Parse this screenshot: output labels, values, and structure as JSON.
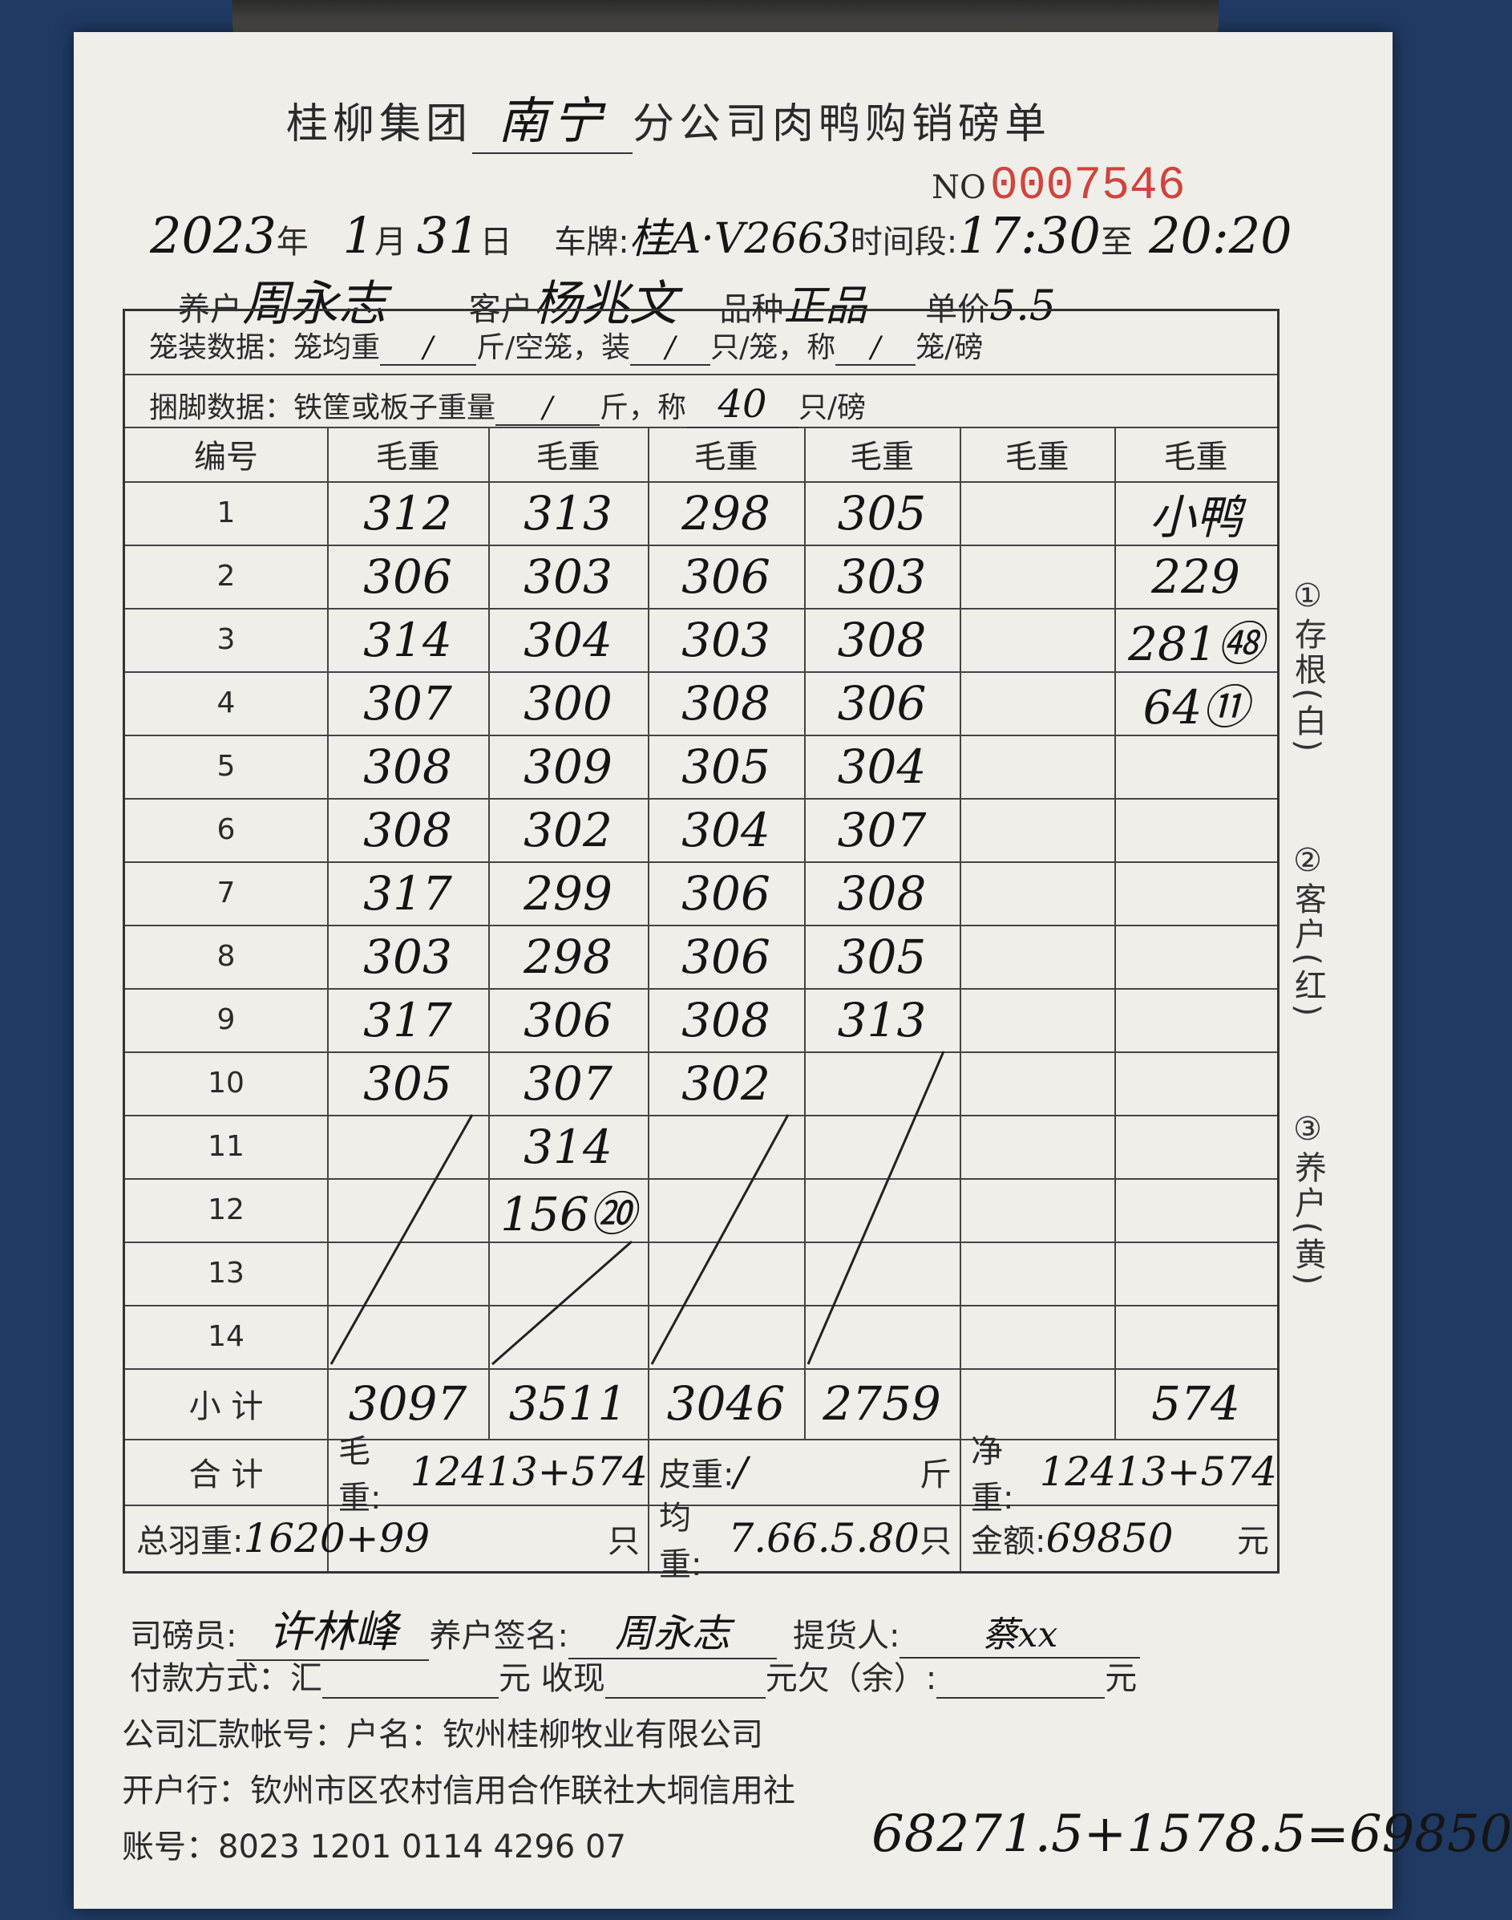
{
  "form": {
    "title_prefix": "桂柳集团",
    "branch": "南宁",
    "title_suffix": "分公司肉鸭购销磅单",
    "no_label": "NO",
    "no_value": "0007546",
    "year": "2023",
    "year_label": "年",
    "month": "1",
    "month_label": "月",
    "day": "31",
    "day_label": "日",
    "plate_label": "车牌:",
    "plate": "桂A·V2663",
    "time_label": "时间段:",
    "time_from": "17:30",
    "time_to_label": "至",
    "time_to": "20:20",
    "farmer_label": "养户",
    "farmer": "周永志",
    "customer_label": "客户",
    "customer": "杨兆文",
    "variety_label": "品种",
    "variety": "正品",
    "price_label": "单价",
    "price": "5.5"
  },
  "cage": {
    "label": "笼装数据：笼均重",
    "v1": "/",
    "u1": "斤/空笼，装",
    "v2": "/",
    "u2": "只/笼，称",
    "v3": "/",
    "u3": "笼/磅"
  },
  "tie": {
    "label": "捆脚数据：铁筐或板子重量",
    "v1": "/",
    "u1": "斤，称",
    "v2": "40",
    "u2": "只/磅"
  },
  "table": {
    "id_header": "编号",
    "col_headers": [
      "毛重",
      "毛重",
      "毛重",
      "毛重",
      "毛重",
      "毛重"
    ],
    "rows": [
      {
        "id": "1",
        "cells": [
          "312",
          "313",
          "298",
          "305",
          "",
          "小鸭"
        ]
      },
      {
        "id": "2",
        "cells": [
          "306",
          "303",
          "306",
          "303",
          "",
          "229"
        ]
      },
      {
        "id": "3",
        "cells": [
          "314",
          "304",
          "303",
          "308",
          "",
          "281㊽"
        ]
      },
      {
        "id": "4",
        "cells": [
          "307",
          "300",
          "308",
          "306",
          "",
          "64⑪"
        ]
      },
      {
        "id": "5",
        "cells": [
          "308",
          "309",
          "305",
          "304",
          "",
          ""
        ]
      },
      {
        "id": "6",
        "cells": [
          "308",
          "302",
          "304",
          "307",
          "",
          ""
        ]
      },
      {
        "id": "7",
        "cells": [
          "317",
          "299",
          "306",
          "308",
          "",
          ""
        ]
      },
      {
        "id": "8",
        "cells": [
          "303",
          "298",
          "306",
          "305",
          "",
          ""
        ]
      },
      {
        "id": "9",
        "cells": [
          "317",
          "306",
          "308",
          "313",
          "",
          ""
        ]
      },
      {
        "id": "10",
        "cells": [
          "305",
          "307",
          "302",
          "",
          "",
          ""
        ]
      },
      {
        "id": "11",
        "cells": [
          "",
          "314",
          "",
          "",
          "",
          ""
        ]
      },
      {
        "id": "12",
        "cells": [
          "",
          "156⑳",
          "",
          "",
          "",
          ""
        ]
      },
      {
        "id": "13",
        "cells": [
          "",
          "",
          "",
          "",
          "",
          ""
        ]
      },
      {
        "id": "14",
        "cells": [
          "",
          "",
          "",
          "",
          "",
          ""
        ]
      }
    ],
    "subtotal_label": "小 计",
    "subtotals": [
      "3097",
      "3511",
      "3046",
      "2759",
      "",
      "574"
    ],
    "total_label": "合 计",
    "gross_label": "毛重:",
    "gross": "12413+574",
    "tare_label": "皮重:",
    "tare": "/",
    "tare_unit": "斤",
    "net_label": "净重:",
    "net": "12413+574",
    "feather_label": "总羽重:",
    "feather": "1620+99",
    "feather_unit": "只",
    "avg_label": "均重:",
    "avg": "7.66.5.80",
    "avg_unit": "只",
    "amount_label": "金额:",
    "amount": "69850",
    "amount_unit": "元"
  },
  "side_labels": [
    "①存根(白)",
    "②客户(红)",
    "③养户(黄)"
  ],
  "footer": {
    "weigher_label": "司磅员:",
    "weigher": "许林峰",
    "farmer_sign_label": "养户签名:",
    "farmer_sign": "周永志",
    "pickup_label": "提货人:",
    "pickup": "蔡xx",
    "pay_label": "付款方式：汇",
    "pay_unit1": "元 收现",
    "pay_unit2": "元欠（余）:",
    "pay_unit3": "元",
    "account_line": "公司汇款帐号：户名：钦州桂柳牧业有限公司",
    "bank_line": "开户行：钦州市区农村信用合作联社大垌信用社",
    "acct_no_label": "账号：",
    "acct_no": "8023 1201 0114 4296 07",
    "calc": "68271.5+1578.5=69850"
  }
}
